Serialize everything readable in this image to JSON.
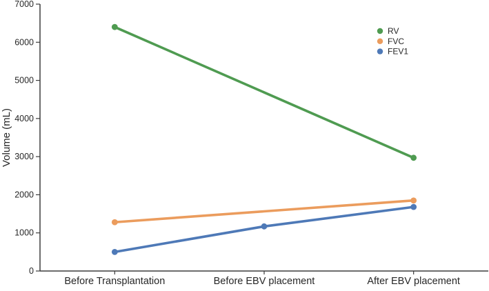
{
  "figure": {
    "title": "",
    "background": "#ffffff"
  },
  "chart_data": {
    "type": "line",
    "title": "",
    "xlabel": "",
    "ylabel": "Volume (mL)",
    "categories": [
      "Before Transplantation",
      "Before EBV placement",
      "After EBV placement"
    ],
    "series": [
      {
        "name": "RV",
        "color": "#4f9b51",
        "values": [
          6400,
          null,
          2970
        ]
      },
      {
        "name": "FVC",
        "color": "#eb9c5d",
        "values": [
          1280,
          null,
          1850
        ]
      },
      {
        "name": "FEV1",
        "color": "#4e79b7",
        "values": [
          500,
          1170,
          1680
        ]
      }
    ],
    "ylim": [
      0,
      7000
    ],
    "ytick_step": 1000,
    "yticks": [
      0,
      1000,
      2000,
      3000,
      4000,
      5000,
      6000,
      7000
    ],
    "grid": false,
    "legend_position": "upper-right-inside",
    "legend_labels": [
      "RV",
      "FVC",
      "FEV1"
    ],
    "marker": "circle",
    "axis_color": "#3b3b3b",
    "text_color": "#262626"
  }
}
